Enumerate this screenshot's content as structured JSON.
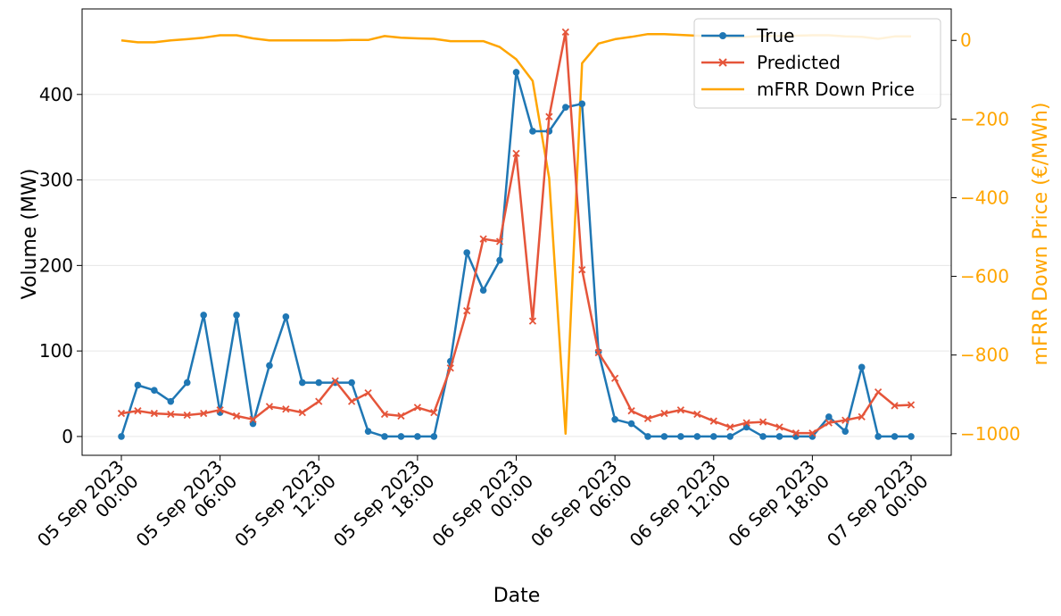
{
  "chart_data": {
    "type": "line",
    "xlabel": "Date",
    "ylabel": "Volume (MW)",
    "y2label": "mFRR Down Price (€/MWh)",
    "ylim": [
      -22,
      500
    ],
    "y2lim": [
      -1055,
      80
    ],
    "yticks": [
      0,
      100,
      200,
      300,
      400
    ],
    "y2ticks": [
      0,
      -200,
      -400,
      -600,
      -800,
      -1000
    ],
    "y2tick_labels": [
      "0",
      "−200",
      "−400",
      "−600",
      "−800",
      "−1000"
    ],
    "grid": "horizontal",
    "legend_position": "top-right",
    "x_range": [
      "2023-09-05 00:00",
      "2023-09-07 00:00"
    ],
    "x": [
      "2023-09-05 00:00",
      "2023-09-05 01:00",
      "2023-09-05 02:00",
      "2023-09-05 03:00",
      "2023-09-05 04:00",
      "2023-09-05 05:00",
      "2023-09-05 06:00",
      "2023-09-05 07:00",
      "2023-09-05 08:00",
      "2023-09-05 09:00",
      "2023-09-05 10:00",
      "2023-09-05 11:00",
      "2023-09-05 12:00",
      "2023-09-05 13:00",
      "2023-09-05 14:00",
      "2023-09-05 15:00",
      "2023-09-05 16:00",
      "2023-09-05 17:00",
      "2023-09-05 18:00",
      "2023-09-05 19:00",
      "2023-09-05 20:00",
      "2023-09-05 21:00",
      "2023-09-05 22:00",
      "2023-09-05 23:00",
      "2023-09-06 00:00",
      "2023-09-06 01:00",
      "2023-09-06 02:00",
      "2023-09-06 03:00",
      "2023-09-06 04:00",
      "2023-09-06 05:00",
      "2023-09-06 06:00",
      "2023-09-06 07:00",
      "2023-09-06 08:00",
      "2023-09-06 09:00",
      "2023-09-06 10:00",
      "2023-09-06 11:00",
      "2023-09-06 12:00",
      "2023-09-06 13:00",
      "2023-09-06 14:00",
      "2023-09-06 15:00",
      "2023-09-06 16:00",
      "2023-09-06 17:00",
      "2023-09-06 18:00",
      "2023-09-06 19:00",
      "2023-09-06 20:00",
      "2023-09-06 21:00",
      "2023-09-06 22:00",
      "2023-09-06 23:00",
      "2023-09-07 00:00"
    ],
    "xticks": [
      {
        "at": "2023-09-05 00:00",
        "line1": "05 Sep 2023",
        "line2": "00:00"
      },
      {
        "at": "2023-09-05 06:00",
        "line1": "05 Sep 2023",
        "line2": "06:00"
      },
      {
        "at": "2023-09-05 12:00",
        "line1": "05 Sep 2023",
        "line2": "12:00"
      },
      {
        "at": "2023-09-05 18:00",
        "line1": "05 Sep 2023",
        "line2": "18:00"
      },
      {
        "at": "2023-09-06 00:00",
        "line1": "06 Sep 2023",
        "line2": "00:00"
      },
      {
        "at": "2023-09-06 06:00",
        "line1": "06 Sep 2023",
        "line2": "06:00"
      },
      {
        "at": "2023-09-06 12:00",
        "line1": "06 Sep 2023",
        "line2": "12:00"
      },
      {
        "at": "2023-09-06 18:00",
        "line1": "06 Sep 2023",
        "line2": "18:00"
      },
      {
        "at": "2023-09-07 00:00",
        "line1": "07 Sep 2023",
        "line2": "00:00"
      }
    ],
    "series": [
      {
        "name": "True",
        "axis": "left",
        "color": "#1f77b4",
        "marker": "circle",
        "values": [
          0,
          60,
          54,
          41,
          63,
          142,
          28,
          142,
          15,
          83,
          140,
          63,
          63,
          63,
          63,
          6,
          0,
          0,
          0,
          0,
          88,
          215,
          171,
          206,
          426,
          357,
          357,
          385,
          389,
          99,
          20,
          15,
          0,
          0,
          0,
          0,
          0,
          0,
          11,
          0,
          0,
          0,
          0,
          23,
          6,
          81,
          0,
          0,
          0
        ]
      },
      {
        "name": "Predicted",
        "axis": "left",
        "color": "#e5553a",
        "marker": "x",
        "values": [
          27,
          30,
          27,
          26,
          25,
          27,
          31,
          24,
          20,
          35,
          32,
          28,
          41,
          65,
          41,
          51,
          26,
          24,
          34,
          28,
          80,
          147,
          231,
          228,
          331,
          135,
          374,
          473,
          195,
          98,
          68,
          30,
          21,
          27,
          31,
          26,
          18,
          11,
          16,
          17,
          11,
          4,
          4,
          16,
          19,
          23,
          52,
          36,
          37
        ]
      },
      {
        "name": "mFRR Down Price",
        "axis": "right",
        "color": "#ffa500",
        "marker": "none",
        "x": [
          "2023-09-05 00:00",
          "2023-09-05 01:00",
          "2023-09-05 02:00",
          "2023-09-05 03:00",
          "2023-09-05 04:00",
          "2023-09-05 05:00",
          "2023-09-05 06:00",
          "2023-09-05 07:00",
          "2023-09-05 08:00",
          "2023-09-05 09:00",
          "2023-09-05 10:00",
          "2023-09-05 11:00",
          "2023-09-05 12:00",
          "2023-09-05 13:00",
          "2023-09-05 14:00",
          "2023-09-05 15:00",
          "2023-09-05 16:00",
          "2023-09-05 17:00",
          "2023-09-05 18:00",
          "2023-09-05 19:00",
          "2023-09-05 20:00",
          "2023-09-05 21:00",
          "2023-09-05 22:00",
          "2023-09-05 23:00",
          "2023-09-06 00:00",
          "2023-09-06 01:00",
          "2023-09-06 02:00",
          "2023-09-06 03:00",
          "2023-09-06 04:00",
          "2023-09-06 05:00",
          "2023-09-06 06:00",
          "2023-09-06 07:00",
          "2023-09-06 08:00",
          "2023-09-06 09:00",
          "2023-09-06 10:00",
          "2023-09-06 11:00",
          "2023-09-06 12:00",
          "2023-09-06 13:00",
          "2023-09-06 14:00",
          "2023-09-06 15:00",
          "2023-09-06 16:00",
          "2023-09-06 17:00",
          "2023-09-06 18:00",
          "2023-09-06 19:00",
          "2023-09-06 20:00",
          "2023-09-06 21:00",
          "2023-09-06 22:00",
          "2023-09-06 23:00",
          "2023-09-07 00:00"
        ],
        "values": [
          0,
          -5,
          -5,
          0,
          3,
          7,
          13,
          13,
          5,
          0,
          0,
          0,
          0,
          0,
          1,
          1,
          11,
          7,
          5,
          4,
          -2,
          -2,
          -2,
          -17,
          -48,
          -103,
          -350,
          -1000,
          -58,
          -8,
          3,
          9,
          16,
          16,
          14,
          12,
          10,
          8,
          9,
          11,
          11,
          12,
          13,
          13,
          10,
          9,
          4,
          10,
          10
        ]
      }
    ]
  }
}
